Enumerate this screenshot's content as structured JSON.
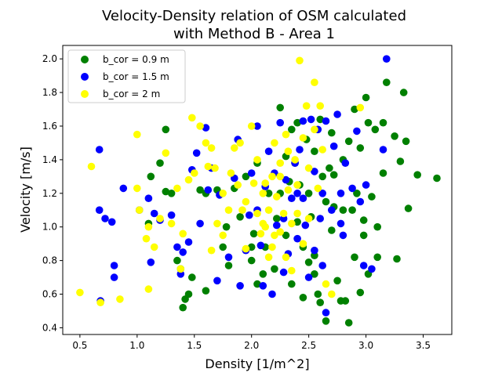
{
  "chart_data": {
    "type": "scatter",
    "title": [
      "Velocity-Density relation of OSM calculated",
      "with Method B - Area 1"
    ],
    "xlabel": "Density [1/m^2]",
    "ylabel": "Velocity [m/s]",
    "xlim": [
      0.35,
      3.75
    ],
    "ylim": [
      0.36,
      2.08
    ],
    "xticks": [
      0.5,
      1.0,
      1.5,
      2.0,
      2.5,
      3.0,
      3.5
    ],
    "yticks": [
      0.4,
      0.6,
      0.8,
      1.0,
      1.2,
      1.4,
      1.6,
      1.8,
      2.0
    ],
    "grid": false,
    "legend_position": "top-left",
    "series": [
      {
        "name": "b_cor = 0.9 m",
        "color": "#008000",
        "points": [
          [
            1.1,
            1.02
          ],
          [
            1.12,
            1.3
          ],
          [
            1.2,
            1.38
          ],
          [
            1.25,
            1.58
          ],
          [
            1.25,
            1.21
          ],
          [
            1.3,
            1.2
          ],
          [
            1.35,
            0.8
          ],
          [
            1.38,
            0.75
          ],
          [
            1.4,
            0.52
          ],
          [
            1.42,
            0.57
          ],
          [
            1.45,
            0.6
          ],
          [
            1.48,
            0.7
          ],
          [
            1.55,
            1.22
          ],
          [
            1.6,
            1.2
          ],
          [
            1.6,
            0.62
          ],
          [
            1.7,
            1.22
          ],
          [
            1.75,
            0.88
          ],
          [
            1.78,
            1.0
          ],
          [
            1.8,
            0.77
          ],
          [
            1.85,
            1.23
          ],
          [
            1.9,
            1.06
          ],
          [
            1.95,
            1.3
          ],
          [
            2.0,
            0.88
          ],
          [
            2.0,
            0.8
          ],
          [
            2.05,
            0.66
          ],
          [
            2.05,
            1.38
          ],
          [
            2.1,
            0.72
          ],
          [
            2.12,
            0.88
          ],
          [
            2.15,
            1.2
          ],
          [
            2.2,
            0.75
          ],
          [
            2.22,
            1.05
          ],
          [
            2.25,
            1.71
          ],
          [
            2.25,
            1.2
          ],
          [
            2.3,
            1.42
          ],
          [
            2.3,
            0.95
          ],
          [
            2.35,
            1.58
          ],
          [
            2.35,
            0.66
          ],
          [
            2.4,
            1.62
          ],
          [
            2.4,
            1.03
          ],
          [
            2.42,
            1.25
          ],
          [
            2.45,
            0.58
          ],
          [
            2.48,
            1.52
          ],
          [
            2.5,
            1.2
          ],
          [
            2.5,
            0.79
          ],
          [
            2.52,
            1.06
          ],
          [
            2.55,
            0.72
          ],
          [
            2.55,
            1.45
          ],
          [
            2.58,
            0.6
          ],
          [
            2.6,
            1.64
          ],
          [
            2.6,
            0.55
          ],
          [
            2.62,
            1.3
          ],
          [
            2.65,
            1.15
          ],
          [
            2.65,
            0.44
          ],
          [
            2.7,
            1.56
          ],
          [
            2.7,
            0.98
          ],
          [
            2.72,
            1.31
          ],
          [
            2.75,
            0.68
          ],
          [
            2.78,
            0.56
          ],
          [
            2.8,
            1.4
          ],
          [
            2.8,
            1.1
          ],
          [
            2.82,
            0.56
          ],
          [
            2.85,
            0.43
          ],
          [
            2.85,
            1.51
          ],
          [
            2.88,
            1.1
          ],
          [
            2.9,
            0.82
          ],
          [
            2.9,
            1.7
          ],
          [
            2.92,
            1.2
          ],
          [
            2.95,
            1.47
          ],
          [
            2.95,
            0.61
          ],
          [
            2.98,
            0.95
          ],
          [
            3.0,
            1.77
          ],
          [
            3.02,
            1.62
          ],
          [
            3.02,
            0.72
          ],
          [
            3.05,
            1.18
          ],
          [
            3.08,
            1.58
          ],
          [
            3.1,
            1.0
          ],
          [
            3.1,
            0.82
          ],
          [
            3.15,
            1.32
          ],
          [
            3.15,
            1.62
          ],
          [
            3.18,
            1.86
          ],
          [
            3.25,
            1.54
          ],
          [
            3.27,
            0.81
          ],
          [
            3.3,
            1.39
          ],
          [
            3.33,
            1.8
          ],
          [
            3.35,
            1.51
          ],
          [
            3.37,
            1.11
          ],
          [
            3.45,
            1.31
          ],
          [
            3.62,
            1.29
          ],
          [
            2.55,
            0.83
          ],
          [
            2.45,
            0.88
          ],
          [
            2.68,
            1.35
          ],
          [
            2.38,
            1.38
          ],
          [
            2.98,
            1.04
          ],
          [
            2.72,
            1.12
          ],
          [
            2.33,
            1.27
          ],
          [
            2.02,
            0.96
          ]
        ]
      },
      {
        "name": "b_cor = 1.5 m",
        "color": "#0000ff",
        "points": [
          [
            0.67,
            1.46
          ],
          [
            0.67,
            1.1
          ],
          [
            0.68,
            0.56
          ],
          [
            0.72,
            1.05
          ],
          [
            0.78,
            1.03
          ],
          [
            0.8,
            0.77
          ],
          [
            0.8,
            0.7
          ],
          [
            0.88,
            1.23
          ],
          [
            1.02,
            1.1
          ],
          [
            1.1,
            1.17
          ],
          [
            1.12,
            0.79
          ],
          [
            1.15,
            1.08
          ],
          [
            1.2,
            1.04
          ],
          [
            1.3,
            1.07
          ],
          [
            1.35,
            0.88
          ],
          [
            1.38,
            0.72
          ],
          [
            1.4,
            0.85
          ],
          [
            1.45,
            0.91
          ],
          [
            1.48,
            1.34
          ],
          [
            1.52,
            1.44
          ],
          [
            1.55,
            1.02
          ],
          [
            1.6,
            1.59
          ],
          [
            1.65,
            1.35
          ],
          [
            1.7,
            0.68
          ],
          [
            1.72,
            1.19
          ],
          [
            1.8,
            0.82
          ],
          [
            1.85,
            1.29
          ],
          [
            1.88,
            1.52
          ],
          [
            1.9,
            0.65
          ],
          [
            1.95,
            0.86
          ],
          [
            1.98,
            1.07
          ],
          [
            2.0,
            1.32
          ],
          [
            2.05,
            1.6
          ],
          [
            2.08,
            0.89
          ],
          [
            2.1,
            0.65
          ],
          [
            2.15,
            1.45
          ],
          [
            2.18,
            0.6
          ],
          [
            2.2,
            1.32
          ],
          [
            2.22,
            1.01
          ],
          [
            2.25,
            1.62
          ],
          [
            2.28,
            0.73
          ],
          [
            2.3,
            1.28
          ],
          [
            2.32,
            0.84
          ],
          [
            2.35,
            1.17
          ],
          [
            2.38,
            1.38
          ],
          [
            2.4,
            0.93
          ],
          [
            2.42,
            1.46
          ],
          [
            2.45,
            1.17
          ],
          [
            2.47,
            1.01
          ],
          [
            2.5,
            0.7
          ],
          [
            2.52,
            1.64
          ],
          [
            2.55,
            1.33
          ],
          [
            2.55,
            0.86
          ],
          [
            2.58,
            1.58
          ],
          [
            2.6,
            1.05
          ],
          [
            2.62,
            0.77
          ],
          [
            2.65,
            1.63
          ],
          [
            2.65,
            0.49
          ],
          [
            2.7,
            1.1
          ],
          [
            2.72,
            1.48
          ],
          [
            2.75,
            1.67
          ],
          [
            2.78,
            1.02
          ],
          [
            2.8,
            0.95
          ],
          [
            2.82,
            1.38
          ],
          [
            2.88,
            1.23
          ],
          [
            2.92,
            1.57
          ],
          [
            2.95,
            1.15
          ],
          [
            2.98,
            0.77
          ],
          [
            3.0,
            1.25
          ],
          [
            3.05,
            0.75
          ],
          [
            3.15,
            1.46
          ],
          [
            3.18,
            2.0
          ],
          [
            2.4,
            1.2
          ],
          [
            2.28,
            1.05
          ],
          [
            2.62,
            1.2
          ],
          [
            2.12,
            1.24
          ],
          [
            2.45,
            1.63
          ],
          [
            2.78,
            1.2
          ],
          [
            1.62,
            1.22
          ],
          [
            2.05,
            1.1
          ]
        ]
      },
      {
        "name": "b_cor = 2 m",
        "color": "#ffff00",
        "points": [
          [
            0.5,
            0.61
          ],
          [
            0.6,
            1.36
          ],
          [
            0.68,
            0.55
          ],
          [
            0.85,
            0.57
          ],
          [
            1.0,
            1.55
          ],
          [
            1.0,
            1.23
          ],
          [
            1.02,
            1.1
          ],
          [
            1.08,
            0.93
          ],
          [
            1.1,
            0.63
          ],
          [
            1.1,
            1.0
          ],
          [
            1.15,
            0.88
          ],
          [
            1.2,
            1.05
          ],
          [
            1.25,
            1.44
          ],
          [
            1.3,
            1.02
          ],
          [
            1.35,
            1.23
          ],
          [
            1.38,
            0.75
          ],
          [
            1.4,
            0.96
          ],
          [
            1.45,
            1.28
          ],
          [
            1.48,
            1.65
          ],
          [
            1.5,
            1.32
          ],
          [
            1.55,
            1.6
          ],
          [
            1.6,
            1.5
          ],
          [
            1.62,
            1.36
          ],
          [
            1.65,
            1.47
          ],
          [
            1.68,
            1.35
          ],
          [
            1.7,
            1.02
          ],
          [
            1.75,
            1.2
          ],
          [
            1.8,
            1.1
          ],
          [
            1.82,
            1.32
          ],
          [
            1.85,
            1.47
          ],
          [
            1.88,
            1.25
          ],
          [
            1.9,
            1.5
          ],
          [
            1.92,
            1.1
          ],
          [
            1.95,
            0.87
          ],
          [
            2.0,
            1.6
          ],
          [
            2.02,
            1.26
          ],
          [
            2.05,
            1.08
          ],
          [
            2.08,
            0.96
          ],
          [
            2.1,
            1.02
          ],
          [
            2.12,
            1.26
          ],
          [
            2.15,
            1.1
          ],
          [
            2.15,
            0.82
          ],
          [
            2.18,
            1.3
          ],
          [
            2.2,
            1.5
          ],
          [
            2.2,
            0.95
          ],
          [
            2.22,
            1.18
          ],
          [
            2.25,
            1.38
          ],
          [
            2.25,
            0.97
          ],
          [
            2.28,
            1.08
          ],
          [
            2.3,
            1.55
          ],
          [
            2.3,
            0.82
          ],
          [
            2.32,
            1.22
          ],
          [
            2.35,
            1.02
          ],
          [
            2.35,
            0.74
          ],
          [
            2.38,
            1.4
          ],
          [
            2.4,
            1.08
          ],
          [
            2.42,
            1.99
          ],
          [
            2.45,
            1.53
          ],
          [
            2.45,
            0.9
          ],
          [
            2.48,
            1.72
          ],
          [
            2.5,
            1.35
          ],
          [
            2.5,
            1.05
          ],
          [
            2.55,
            1.86
          ],
          [
            2.55,
            1.58
          ],
          [
            2.58,
            1.23
          ],
          [
            2.6,
            1.72
          ],
          [
            2.62,
            1.46
          ],
          [
            2.65,
            0.66
          ],
          [
            2.7,
            0.6
          ],
          [
            2.95,
            1.71
          ],
          [
            1.65,
            0.86
          ],
          [
            1.75,
            0.95
          ],
          [
            2.1,
            1.2
          ],
          [
            2.25,
            1.3
          ],
          [
            2.18,
            0.88
          ],
          [
            2.05,
            1.4
          ],
          [
            2.4,
            1.25
          ],
          [
            2.32,
            1.45
          ],
          [
            1.95,
            1.15
          ],
          [
            2.12,
            1.0
          ]
        ]
      }
    ]
  }
}
